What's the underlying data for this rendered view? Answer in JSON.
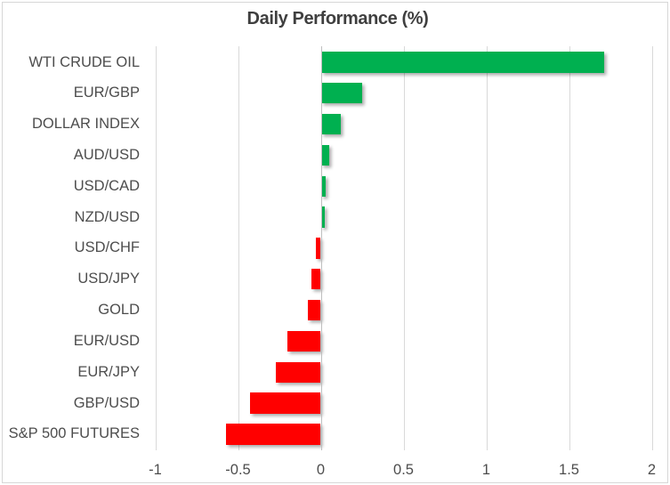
{
  "chart_data": {
    "type": "bar",
    "orientation": "horizontal",
    "title": "Daily Performance (%)",
    "categories": [
      "WTI CRUDE OIL",
      "EUR/GBP",
      "DOLLAR INDEX",
      "AUD/USD",
      "USD/CAD",
      "NZD/USD",
      "USD/CHF",
      "USD/JPY",
      "GOLD",
      "EUR/USD",
      "EUR/JPY",
      "GBP/USD",
      "S&P 500 FUTURES"
    ],
    "values": [
      1.71,
      0.25,
      0.12,
      0.05,
      0.03,
      0.025,
      -0.03,
      -0.055,
      -0.08,
      -0.2,
      -0.27,
      -0.43,
      -0.57
    ],
    "xlim": [
      -1,
      2
    ],
    "x_ticks": [
      -1,
      -0.5,
      0,
      0.5,
      1,
      1.5,
      2
    ],
    "x_tick_labels": [
      "-1",
      "-0.5",
      "0",
      "0.5",
      "1",
      "1.5",
      "2"
    ],
    "grid": true,
    "legend": false,
    "colors": {
      "positive_bar": "#00B050",
      "negative_bar": "#FF0000",
      "gridline": "#D9D9D9",
      "zero_axis_line": "#BFBFBF",
      "title_text": "#3F3F3F",
      "label_text": "#4D4D4D",
      "chart_border": "#D7D7D7",
      "background": "#FFFFFF"
    }
  }
}
